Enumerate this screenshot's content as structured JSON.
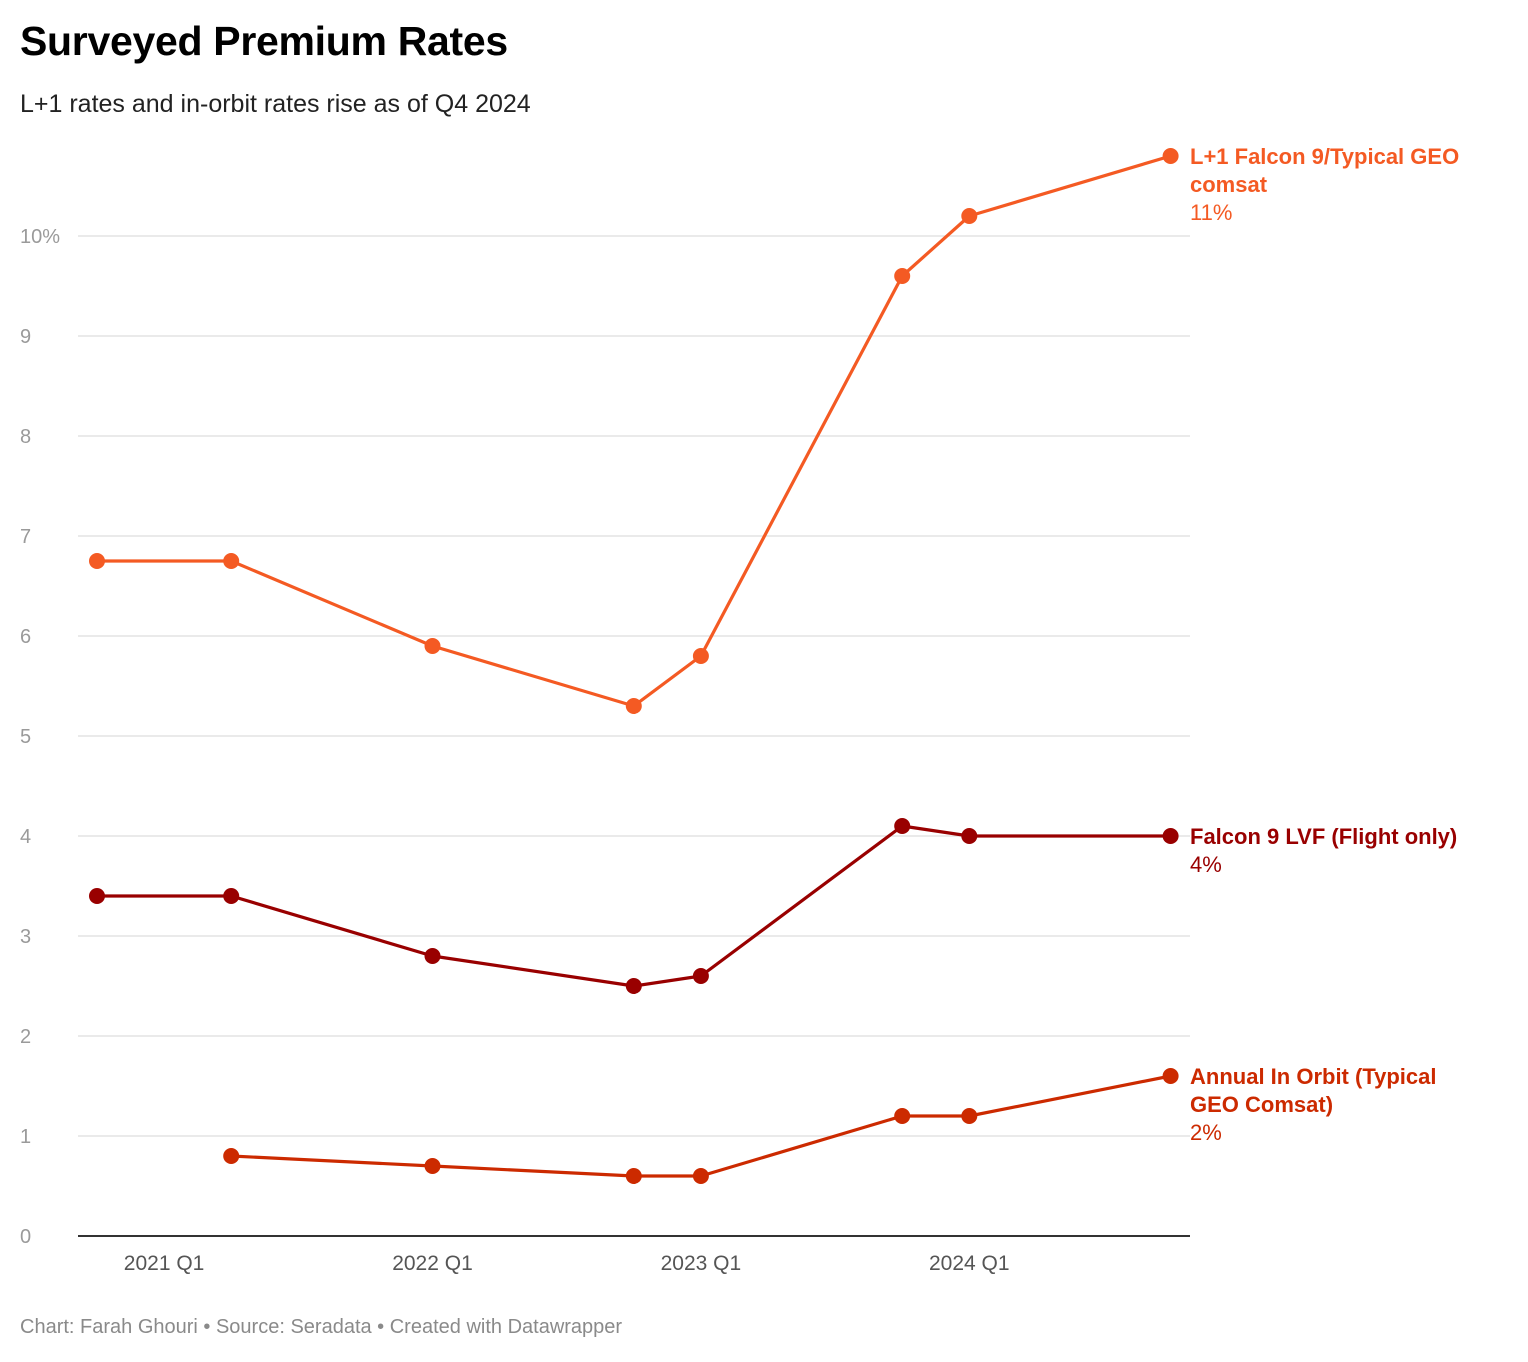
{
  "title": "Surveyed Premium Rates",
  "subtitle": "L+1 rates and in-orbit rates rise as of Q4 2024",
  "footer": "Chart: Farah Ghouri • Source: Seradata • Created with Datawrapper",
  "chart_data": {
    "type": "line",
    "title": "Surveyed Premium Rates",
    "subtitle": "L+1 rates and in-orbit rates rise as of Q4 2024",
    "xlabel": "",
    "ylabel": "",
    "x_tick_labels": [
      "2021 Q1",
      "2022 Q1",
      "2023 Q1",
      "2024 Q1"
    ],
    "y_tick_labels": [
      "0",
      "1",
      "2",
      "3",
      "4",
      "5",
      "6",
      "7",
      "8",
      "9",
      "10%"
    ],
    "ylim": [
      0,
      11
    ],
    "grid": "horizontal",
    "legend": "direct labels at right end of each line",
    "x": [
      "2020 Q4",
      "2021 Q2",
      "2022 Q1",
      "2022 Q4",
      "2023 Q1",
      "2023 Q4",
      "2024 Q1",
      "2024 Q4"
    ],
    "series": [
      {
        "name": "L+1 Falcon 9/Typical GEO comsat",
        "end_label": "11%",
        "color": "#f45a23",
        "values": [
          6.75,
          6.75,
          5.9,
          5.3,
          5.8,
          9.6,
          10.2,
          10.8
        ]
      },
      {
        "name": "Falcon 9 LVF (Flight only)",
        "end_label": "4%",
        "color": "#990000",
        "values": [
          3.4,
          3.4,
          2.8,
          2.5,
          2.6,
          4.1,
          4.0,
          4.0
        ]
      },
      {
        "name": "Annual In Orbit (Typical GEO Comsat)",
        "end_label": "2%",
        "color": "#cc2a00",
        "values": [
          null,
          0.8,
          0.7,
          0.6,
          0.6,
          1.2,
          1.2,
          1.6
        ]
      }
    ]
  }
}
